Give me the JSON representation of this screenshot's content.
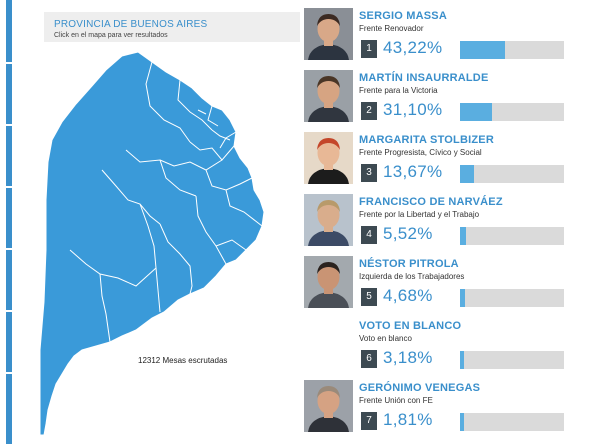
{
  "map": {
    "title": "PROVINCIA DE BUENOS AIRES",
    "subtitle": "Click en el mapa para ver resultados",
    "mesas": "12312 Mesas escrutadas",
    "fill_color": "#3a9ad9"
  },
  "candidates": [
    {
      "name": "SERGIO MASSA",
      "party": "Frente Renovador",
      "position": "1",
      "percent_text": "43,22%",
      "percent": 43.22,
      "photo": "portrait"
    },
    {
      "name": "MARTÍN INSAURRALDE",
      "party": "Frente para la Victoria",
      "position": "2",
      "percent_text": "31,10%",
      "percent": 31.1,
      "photo": "portrait"
    },
    {
      "name": "MARGARITA STOLBIZER",
      "party": "Frente Progresista, Cívico y Social",
      "position": "3",
      "percent_text": "13,67%",
      "percent": 13.67,
      "photo": "portrait"
    },
    {
      "name": "FRANCISCO DE NARVÁEZ",
      "party": "Frente por la Libertad y el Trabajo",
      "position": "4",
      "percent_text": "5,52%",
      "percent": 5.52,
      "photo": "portrait"
    },
    {
      "name": "NÉSTOR PITROLA",
      "party": "Izquierda de los Trabajadores",
      "position": "5",
      "percent_text": "4,68%",
      "percent": 4.68,
      "photo": "portrait"
    },
    {
      "name": "VOTO EN BLANCO",
      "party": "Voto en blanco",
      "position": "6",
      "percent_text": "3,18%",
      "percent": 3.18,
      "photo": "none"
    },
    {
      "name": "GERÓNIMO VENEGAS",
      "party": "Frente Unión con FE",
      "position": "7",
      "percent_text": "1,81%",
      "percent": 1.81,
      "photo": "portrait"
    }
  ],
  "colors": {
    "accent": "#3a8fcb",
    "bar_fill": "#5aaee0",
    "bar_track": "#dadada",
    "position_badge": "#3d4a52"
  }
}
